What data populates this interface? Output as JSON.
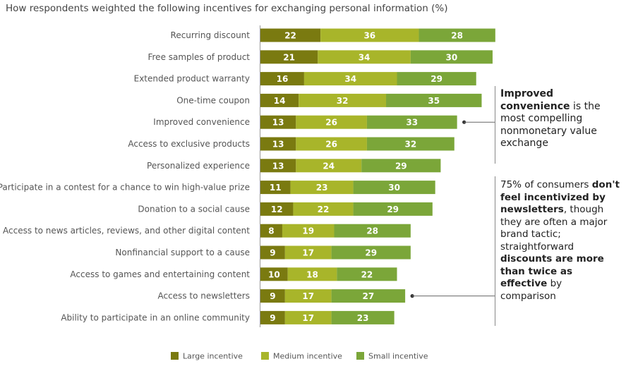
{
  "chart_data": {
    "type": "bar",
    "orientation": "horizontal",
    "stacked": true,
    "title": "How respondents weighted the following incentives for exchanging personal information (%)",
    "categories": [
      "Recurring discount",
      "Free samples of product",
      "Extended product warranty",
      "One-time coupon",
      "Improved convenience",
      "Access to exclusive products",
      "Personalized experience",
      "Participate in a contest for a chance to win high-value prize",
      "Donation to a social cause",
      "Access to news articles, reviews, and other digital content",
      "Nonfinancial support to a cause",
      "Access to games and entertaining content",
      "Access to newsletters",
      "Ability to participate in an online community"
    ],
    "series": [
      {
        "name": "Large incentive",
        "color": "#7a7a10",
        "values": [
          22,
          21,
          16,
          14,
          13,
          13,
          13,
          11,
          12,
          8,
          9,
          10,
          9,
          9
        ]
      },
      {
        "name": "Medium incentive",
        "color": "#a8b52a",
        "values": [
          36,
          34,
          34,
          32,
          26,
          26,
          24,
          23,
          22,
          19,
          17,
          18,
          17,
          17
        ]
      },
      {
        "name": "Small incentive",
        "color": "#7ba639",
        "values": [
          28,
          30,
          29,
          35,
          33,
          32,
          29,
          30,
          29,
          28,
          29,
          22,
          27,
          23
        ]
      }
    ],
    "legend": "bottom",
    "grid": false
  },
  "annotations": [
    {
      "target": "Improved convenience",
      "parts": [
        {
          "text": "Improved convenience",
          "bold": true
        },
        {
          "text": " is the most compelling nonmonetary value exchange",
          "bold": false
        }
      ]
    },
    {
      "target": "Access to newsletters",
      "parts": [
        {
          "text": "75% of consumers ",
          "bold": false
        },
        {
          "text": "don't feel incentivized by newsletters",
          "bold": true
        },
        {
          "text": ", though they are often a major brand tactic; straightforward ",
          "bold": false
        },
        {
          "text": "discounts are more than twice as effective",
          "bold": true
        },
        {
          "text": " by comparison",
          "bold": false
        }
      ]
    }
  ]
}
